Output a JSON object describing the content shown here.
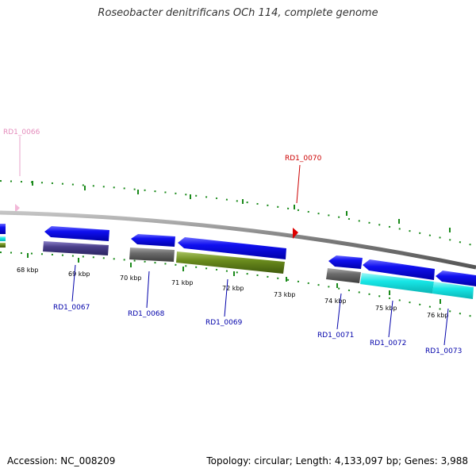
{
  "title": "Roseobacter denitrificans OCh 114, complete genome",
  "footer": {
    "accession": "Accession: NC_008209",
    "summary": "Topology: circular; Length: 4,133,097 bp; Genes: 3,988"
  },
  "colors": {
    "cds_forward": "#0000e8",
    "cds_reverse_label": "#0000aa",
    "olive_bar": "#6b8c1e",
    "purple_bar": "#4a3f8a",
    "grey_bar": "#6b6b6b",
    "cyan_bar": "#18e6e6",
    "tick_green": "#1a8a1a",
    "backbone": "#888888",
    "red_feature": "#d40000",
    "pink_feature": "#e8a0c8"
  },
  "ticks": [
    "68 kbp",
    "69 kbp",
    "70 kbp",
    "71 kbp",
    "72 kbp",
    "73 kbp",
    "74 kbp",
    "75 kbp",
    "76 kbp"
  ],
  "genes": [
    {
      "name": "RD1_0066",
      "color": "#e48cbc"
    },
    {
      "name": "RD1_0070",
      "color": "#cc0000"
    },
    {
      "name": "RD1_0067",
      "color": "#0000aa"
    },
    {
      "name": "RD1_0068",
      "color": "#0000aa"
    },
    {
      "name": "RD1_0069",
      "color": "#0000aa"
    },
    {
      "name": "RD1_0071",
      "color": "#0000aa"
    },
    {
      "name": "RD1_0072",
      "color": "#0000aa"
    },
    {
      "name": "RD1_0073",
      "color": "#0000aa"
    }
  ]
}
